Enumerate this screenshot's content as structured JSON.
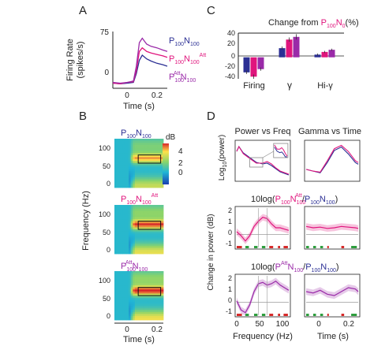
{
  "colors": {
    "blue": "#2b2f94",
    "magenta": "#e0157d",
    "purple": "#9a2aa8",
    "grid": "#bbbbbb",
    "heat_low": "#1a6fd0",
    "heat_high": "#ffe14a",
    "heat_peak": "#d7262b",
    "band_green": "#2e9e3e",
    "band_red": "#d62a2a"
  },
  "panel_labels": {
    "a": "A",
    "b": "B",
    "c": "C",
    "d": "D"
  },
  "sub": {
    "p": "P",
    "n": "N",
    "s100": "100",
    "att": "Att",
    "s0": "0",
    "pct_open": "(%)",
    "paren_open": "(",
    "paren_close": ")",
    "slash": "/"
  },
  "panel_a": {
    "ylabel": "Firing Rate\n(spikes/s)",
    "xlabel": "Time (s)",
    "yticks": [
      "0",
      "75"
    ],
    "xticks": [
      "0",
      "0.2"
    ],
    "legend": [
      "P100N100",
      "P100N100Att",
      "P100AttN100"
    ]
  },
  "panel_b": {
    "ylabel": "Frequency (Hz)",
    "xlabel": "Time (s)",
    "yticks": [
      "100",
      "50",
      "0"
    ],
    "xticks": [
      "0",
      "0.2"
    ],
    "colorbar_label": "dB",
    "colorbar_ticks": [
      "4",
      "2",
      "0"
    ]
  },
  "panel_c": {
    "title_prefix": "Change from ",
    "yticks": [
      "40",
      "20",
      "0",
      "-20",
      "-40"
    ],
    "categories": [
      "Firing",
      "γ",
      "Hi-γ"
    ]
  },
  "panel_d": {
    "title_power": "Power vs Freq",
    "title_gamma": "Gamma vs Time",
    "ylabel_top": "Log10(power)",
    "ylabel_bottom": "Change in power (dB)",
    "mid_title_prefix": "10log",
    "yticks_change": [
      "2",
      "1",
      "0",
      "-1"
    ],
    "xlabel_freq": "Frequency (Hz)",
    "xlabel_time": "Time (s)",
    "xticks_freq": [
      "0",
      "50",
      "100"
    ],
    "xticks_time": [
      "0",
      "0.2"
    ]
  },
  "chart_data": [
    {
      "type": "line",
      "panel": "A",
      "xlabel": "Time (s)",
      "ylabel": "Firing Rate (spikes/s)",
      "xlim": [
        -0.1,
        0.27
      ],
      "ylim": [
        0,
        75
      ],
      "x": [
        -0.1,
        -0.05,
        0.0,
        0.04,
        0.06,
        0.08,
        0.1,
        0.13,
        0.16,
        0.2,
        0.24,
        0.27
      ],
      "series": [
        {
          "name": "P100N100",
          "color": "#2b2f94",
          "values": [
            7,
            6,
            7,
            8,
            20,
            38,
            45,
            40,
            37,
            34,
            32,
            30
          ]
        },
        {
          "name": "P100N100Att",
          "color": "#e0157d",
          "values": [
            7,
            6,
            8,
            9,
            24,
            50,
            55,
            50,
            48,
            46,
            44,
            42
          ]
        },
        {
          "name": "P100AttN100",
          "color": "#9a2aa8",
          "values": [
            8,
            7,
            8,
            10,
            30,
            62,
            68,
            60,
            57,
            55,
            52,
            50
          ]
        }
      ]
    },
    {
      "type": "bar",
      "panel": "C",
      "ylim": [
        -40,
        45
      ],
      "categories": [
        "Firing",
        "γ",
        "Hi-γ"
      ],
      "series": [
        {
          "name": "P100N100",
          "color": "#2b2f94",
          "values": [
            -28,
            17,
            5
          ],
          "err": [
            3,
            3,
            2
          ]
        },
        {
          "name": "P100N100Att",
          "color": "#e0157d",
          "values": [
            -36,
            33,
            10
          ],
          "err": [
            4,
            4,
            2
          ]
        },
        {
          "name": "P100AttN100",
          "color": "#9a2aa8",
          "values": [
            -22,
            38,
            14
          ],
          "err": [
            3,
            5,
            2
          ]
        }
      ]
    },
    {
      "type": "heatmap",
      "panel": "B",
      "xlabel": "Time (s)",
      "ylabel": "Frequency (Hz)",
      "xlim": [
        -0.1,
        0.27
      ],
      "ylim": [
        0,
        120
      ],
      "colorbar": [
        -1,
        4
      ],
      "gamma_band_hz": [
        60,
        80
      ],
      "gamma_window_s": [
        0.1,
        0.25
      ],
      "maps": [
        "P100N100",
        "P100N100Att",
        "P100AttN100"
      ]
    },
    {
      "type": "line",
      "panel": "D power vs freq",
      "xlim": [
        0,
        120
      ],
      "x": [
        0,
        5,
        15,
        30,
        45,
        60,
        70,
        80,
        90,
        100,
        110,
        120
      ],
      "series": [
        {
          "name": "P100N100",
          "color": "#2b2f94",
          "values": [
            -0.2,
            0.1,
            -0.3,
            -0.6,
            -0.9,
            -1.0,
            -0.95,
            -1.1,
            -1.3,
            -1.5,
            -1.6,
            -1.7
          ]
        },
        {
          "name": "P100N100Att",
          "color": "#e0157d",
          "values": [
            -0.2,
            0.1,
            -0.35,
            -0.65,
            -0.95,
            -0.95,
            -0.85,
            -1.0,
            -1.25,
            -1.45,
            -1.55,
            -1.65
          ]
        }
      ]
    },
    {
      "type": "line",
      "panel": "D gamma vs time",
      "xlim": [
        -0.1,
        0.27
      ],
      "x": [
        -0.1,
        -0.05,
        0.0,
        0.05,
        0.1,
        0.15,
        0.2,
        0.25,
        0.27
      ],
      "series": [
        {
          "name": "P100N100",
          "color": "#2b2f94",
          "values": [
            0.3,
            0.25,
            0.2,
            0.5,
            0.85,
            0.95,
            0.75,
            0.5,
            0.45
          ]
        },
        {
          "name": "P100N100Att",
          "color": "#e0157d",
          "values": [
            0.3,
            0.25,
            0.22,
            0.55,
            0.9,
            1.0,
            0.82,
            0.55,
            0.5
          ]
        }
      ]
    },
    {
      "type": "area",
      "panel": "D change, N100Att vs N100",
      "color": "#e0157d",
      "freq_x": [
        0,
        10,
        20,
        30,
        40,
        50,
        60,
        70,
        80,
        90,
        100,
        110,
        120
      ],
      "freq_y": [
        0.2,
        -0.1,
        -0.5,
        -0.1,
        0.6,
        1.0,
        1.3,
        1.2,
        0.8,
        0.5,
        0.5,
        0.4,
        0.3
      ],
      "time_x": [
        -0.1,
        -0.05,
        0.0,
        0.05,
        0.1,
        0.15,
        0.2,
        0.25,
        0.27
      ],
      "time_y": [
        0.6,
        0.5,
        0.55,
        0.45,
        0.5,
        0.6,
        0.55,
        0.5,
        0.45
      ]
    },
    {
      "type": "area",
      "panel": "D change, P100Att vs P100",
      "color": "#9a2aa8",
      "freq_x": [
        0,
        10,
        20,
        30,
        40,
        50,
        60,
        70,
        80,
        90,
        100,
        110,
        120
      ],
      "freq_y": [
        0.1,
        -0.6,
        -0.8,
        -0.2,
        0.8,
        1.4,
        1.5,
        1.3,
        1.4,
        1.6,
        1.3,
        1.1,
        0.9
      ],
      "time_x": [
        -0.1,
        -0.05,
        0.0,
        0.05,
        0.1,
        0.15,
        0.2,
        0.25,
        0.27
      ],
      "time_y": [
        0.8,
        0.7,
        0.9,
        0.6,
        0.5,
        0.8,
        1.1,
        1.0,
        0.8
      ]
    }
  ]
}
